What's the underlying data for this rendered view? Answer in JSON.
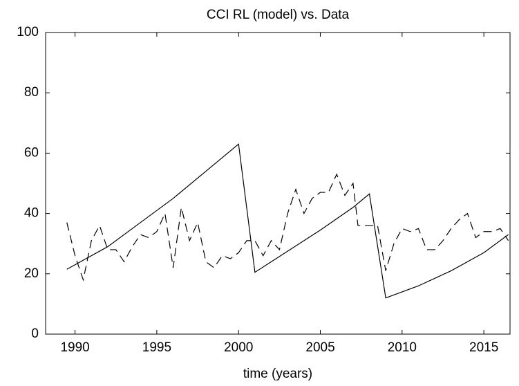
{
  "chart_data": {
    "type": "line",
    "title": "CCI RL (model) vs. Data",
    "x_label": "time (years)",
    "xlim": [
      1988.2,
      2016.6
    ],
    "xticks": [
      1990,
      1995,
      2000,
      2005,
      2010,
      2015
    ],
    "ylim": [
      0,
      100
    ],
    "yticks": [
      0,
      20,
      40,
      60,
      80,
      100
    ],
    "grid": false,
    "series": [
      {
        "color": "#000000",
        "dashed": false,
        "x": [
          1989.5,
          1990,
          1992,
          1994,
          1996,
          1998,
          2000,
          2001,
          2003,
          2005,
          2007,
          2008,
          2009,
          2011,
          2013,
          2015,
          2016.5
        ],
        "values": [
          21.5,
          23,
          29,
          37,
          45,
          54,
          63,
          20.5,
          27.5,
          34.5,
          42,
          46.5,
          12,
          16,
          21,
          27,
          33
        ]
      },
      {
        "color": "#000000",
        "dashed": true,
        "x": [
          1989.5,
          1990,
          1990.5,
          1991,
          1991.5,
          1992,
          1992.5,
          1993,
          1993.5,
          1994,
          1994.5,
          1995,
          1995.5,
          1996,
          1996.5,
          1997,
          1997.5,
          1998,
          1998.5,
          1999,
          1999.5,
          2000,
          2000.5,
          2001,
          2001.5,
          2002,
          2002.5,
          2003,
          2003.5,
          2004,
          2004.5,
          2005,
          2005.5,
          2006,
          2006.5,
          2007,
          2007.3,
          2008,
          2008.5,
          2009,
          2009.5,
          2010,
          2010.5,
          2011,
          2011.5,
          2012,
          2012.5,
          2013,
          2013.5,
          2014,
          2014.5,
          2015,
          2015.5,
          2016,
          2016.5
        ],
        "values": [
          37,
          26,
          18,
          31,
          36,
          28,
          28,
          24,
          29,
          33,
          32,
          34,
          40,
          22,
          42,
          31,
          37,
          24,
          22,
          26,
          25,
          27,
          31,
          31,
          26,
          31,
          28,
          40,
          48,
          40,
          45,
          47,
          47,
          53,
          46,
          50,
          36,
          36,
          36,
          21,
          30,
          35,
          34,
          35,
          28,
          28,
          31,
          35,
          38,
          40,
          32,
          34,
          34,
          35,
          31
        ]
      }
    ]
  }
}
